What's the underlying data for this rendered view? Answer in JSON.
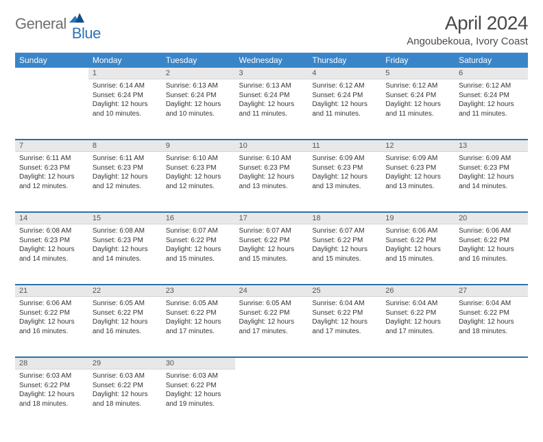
{
  "logo": {
    "general": "General",
    "blue": "Blue"
  },
  "header": {
    "title": "April 2024",
    "location": "Angoubekoua, Ivory Coast"
  },
  "colors": {
    "header_bg": "#3a85c9",
    "header_text": "#ffffff",
    "daynum_bg": "#e8e8e8",
    "sep": "#2d6fa8",
    "logo_gray": "#6e6e6e",
    "logo_blue": "#2d72b8"
  },
  "weekdays": [
    "Sunday",
    "Monday",
    "Tuesday",
    "Wednesday",
    "Thursday",
    "Friday",
    "Saturday"
  ],
  "weeks": [
    [
      null,
      {
        "n": "1",
        "sunrise": "6:14 AM",
        "sunset": "6:24 PM",
        "daylight": "12 hours and 10 minutes."
      },
      {
        "n": "2",
        "sunrise": "6:13 AM",
        "sunset": "6:24 PM",
        "daylight": "12 hours and 10 minutes."
      },
      {
        "n": "3",
        "sunrise": "6:13 AM",
        "sunset": "6:24 PM",
        "daylight": "12 hours and 11 minutes."
      },
      {
        "n": "4",
        "sunrise": "6:12 AM",
        "sunset": "6:24 PM",
        "daylight": "12 hours and 11 minutes."
      },
      {
        "n": "5",
        "sunrise": "6:12 AM",
        "sunset": "6:24 PM",
        "daylight": "12 hours and 11 minutes."
      },
      {
        "n": "6",
        "sunrise": "6:12 AM",
        "sunset": "6:24 PM",
        "daylight": "12 hours and 11 minutes."
      }
    ],
    [
      {
        "n": "7",
        "sunrise": "6:11 AM",
        "sunset": "6:23 PM",
        "daylight": "12 hours and 12 minutes."
      },
      {
        "n": "8",
        "sunrise": "6:11 AM",
        "sunset": "6:23 PM",
        "daylight": "12 hours and 12 minutes."
      },
      {
        "n": "9",
        "sunrise": "6:10 AM",
        "sunset": "6:23 PM",
        "daylight": "12 hours and 12 minutes."
      },
      {
        "n": "10",
        "sunrise": "6:10 AM",
        "sunset": "6:23 PM",
        "daylight": "12 hours and 13 minutes."
      },
      {
        "n": "11",
        "sunrise": "6:09 AM",
        "sunset": "6:23 PM",
        "daylight": "12 hours and 13 minutes."
      },
      {
        "n": "12",
        "sunrise": "6:09 AM",
        "sunset": "6:23 PM",
        "daylight": "12 hours and 13 minutes."
      },
      {
        "n": "13",
        "sunrise": "6:09 AM",
        "sunset": "6:23 PM",
        "daylight": "12 hours and 14 minutes."
      }
    ],
    [
      {
        "n": "14",
        "sunrise": "6:08 AM",
        "sunset": "6:23 PM",
        "daylight": "12 hours and 14 minutes."
      },
      {
        "n": "15",
        "sunrise": "6:08 AM",
        "sunset": "6:23 PM",
        "daylight": "12 hours and 14 minutes."
      },
      {
        "n": "16",
        "sunrise": "6:07 AM",
        "sunset": "6:22 PM",
        "daylight": "12 hours and 15 minutes."
      },
      {
        "n": "17",
        "sunrise": "6:07 AM",
        "sunset": "6:22 PM",
        "daylight": "12 hours and 15 minutes."
      },
      {
        "n": "18",
        "sunrise": "6:07 AM",
        "sunset": "6:22 PM",
        "daylight": "12 hours and 15 minutes."
      },
      {
        "n": "19",
        "sunrise": "6:06 AM",
        "sunset": "6:22 PM",
        "daylight": "12 hours and 15 minutes."
      },
      {
        "n": "20",
        "sunrise": "6:06 AM",
        "sunset": "6:22 PM",
        "daylight": "12 hours and 16 minutes."
      }
    ],
    [
      {
        "n": "21",
        "sunrise": "6:06 AM",
        "sunset": "6:22 PM",
        "daylight": "12 hours and 16 minutes."
      },
      {
        "n": "22",
        "sunrise": "6:05 AM",
        "sunset": "6:22 PM",
        "daylight": "12 hours and 16 minutes."
      },
      {
        "n": "23",
        "sunrise": "6:05 AM",
        "sunset": "6:22 PM",
        "daylight": "12 hours and 17 minutes."
      },
      {
        "n": "24",
        "sunrise": "6:05 AM",
        "sunset": "6:22 PM",
        "daylight": "12 hours and 17 minutes."
      },
      {
        "n": "25",
        "sunrise": "6:04 AM",
        "sunset": "6:22 PM",
        "daylight": "12 hours and 17 minutes."
      },
      {
        "n": "26",
        "sunrise": "6:04 AM",
        "sunset": "6:22 PM",
        "daylight": "12 hours and 17 minutes."
      },
      {
        "n": "27",
        "sunrise": "6:04 AM",
        "sunset": "6:22 PM",
        "daylight": "12 hours and 18 minutes."
      }
    ],
    [
      {
        "n": "28",
        "sunrise": "6:03 AM",
        "sunset": "6:22 PM",
        "daylight": "12 hours and 18 minutes."
      },
      {
        "n": "29",
        "sunrise": "6:03 AM",
        "sunset": "6:22 PM",
        "daylight": "12 hours and 18 minutes."
      },
      {
        "n": "30",
        "sunrise": "6:03 AM",
        "sunset": "6:22 PM",
        "daylight": "12 hours and 19 minutes."
      },
      null,
      null,
      null,
      null
    ]
  ],
  "labels": {
    "sunrise": "Sunrise: ",
    "sunset": "Sunset: ",
    "daylight": "Daylight: "
  }
}
